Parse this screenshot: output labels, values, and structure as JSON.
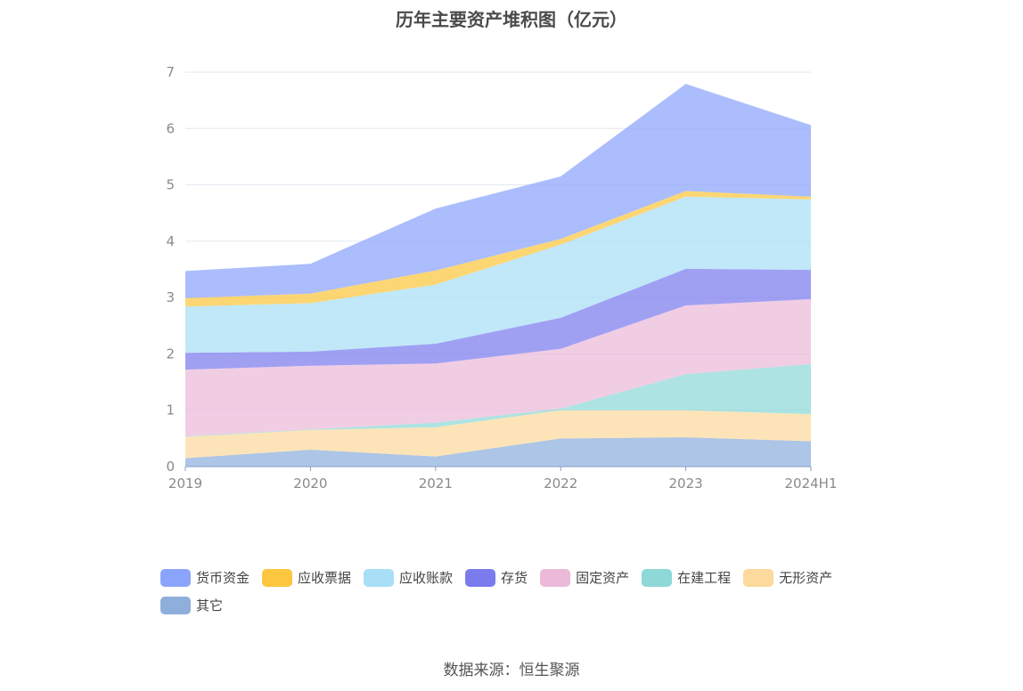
{
  "chart_data": {
    "type": "area",
    "stacked": true,
    "title": "历年主要资产堆积图（亿元）",
    "categories": [
      "2019",
      "2020",
      "2021",
      "2022",
      "2023",
      "2024H1"
    ],
    "y_ticks": [
      "0",
      "1",
      "2",
      "3",
      "4",
      "5",
      "6",
      "7"
    ],
    "ylim": [
      0,
      7
    ],
    "grid": true,
    "legend_position": "bottom",
    "series": [
      {
        "name": "其它",
        "color": "#8eaedc",
        "values": [
          0.15,
          0.3,
          0.18,
          0.5,
          0.52,
          0.45
        ]
      },
      {
        "name": "无形资产",
        "color": "#fcd99c",
        "values": [
          0.38,
          0.35,
          0.52,
          0.5,
          0.48,
          0.48
        ]
      },
      {
        "name": "在建工程",
        "color": "#8ed8d8",
        "values": [
          0.01,
          0.01,
          0.08,
          0.03,
          0.64,
          0.89
        ]
      },
      {
        "name": "固定资产",
        "color": "#ebbad9",
        "values": [
          1.18,
          1.13,
          1.05,
          1.06,
          1.22,
          1.15
        ]
      },
      {
        "name": "存货",
        "color": "#7b7bee",
        "values": [
          0.3,
          0.25,
          0.35,
          0.55,
          0.65,
          0.52
        ]
      },
      {
        "name": "应收账款",
        "color": "#a8dff6",
        "values": [
          0.82,
          0.86,
          1.05,
          1.3,
          1.28,
          1.25
        ]
      },
      {
        "name": "应收票据",
        "color": "#fcc63f",
        "values": [
          0.15,
          0.17,
          0.25,
          0.1,
          0.1,
          0.05
        ]
      },
      {
        "name": "货币资金",
        "color": "#8ba4fb",
        "values": [
          0.48,
          0.53,
          1.1,
          1.11,
          1.9,
          1.27
        ]
      }
    ],
    "legend_order": [
      "货币资金",
      "应收票据",
      "应收账款",
      "存货",
      "固定资产",
      "在建工程",
      "无形资产",
      "其它"
    ]
  },
  "source_note": "数据来源：恒生聚源"
}
